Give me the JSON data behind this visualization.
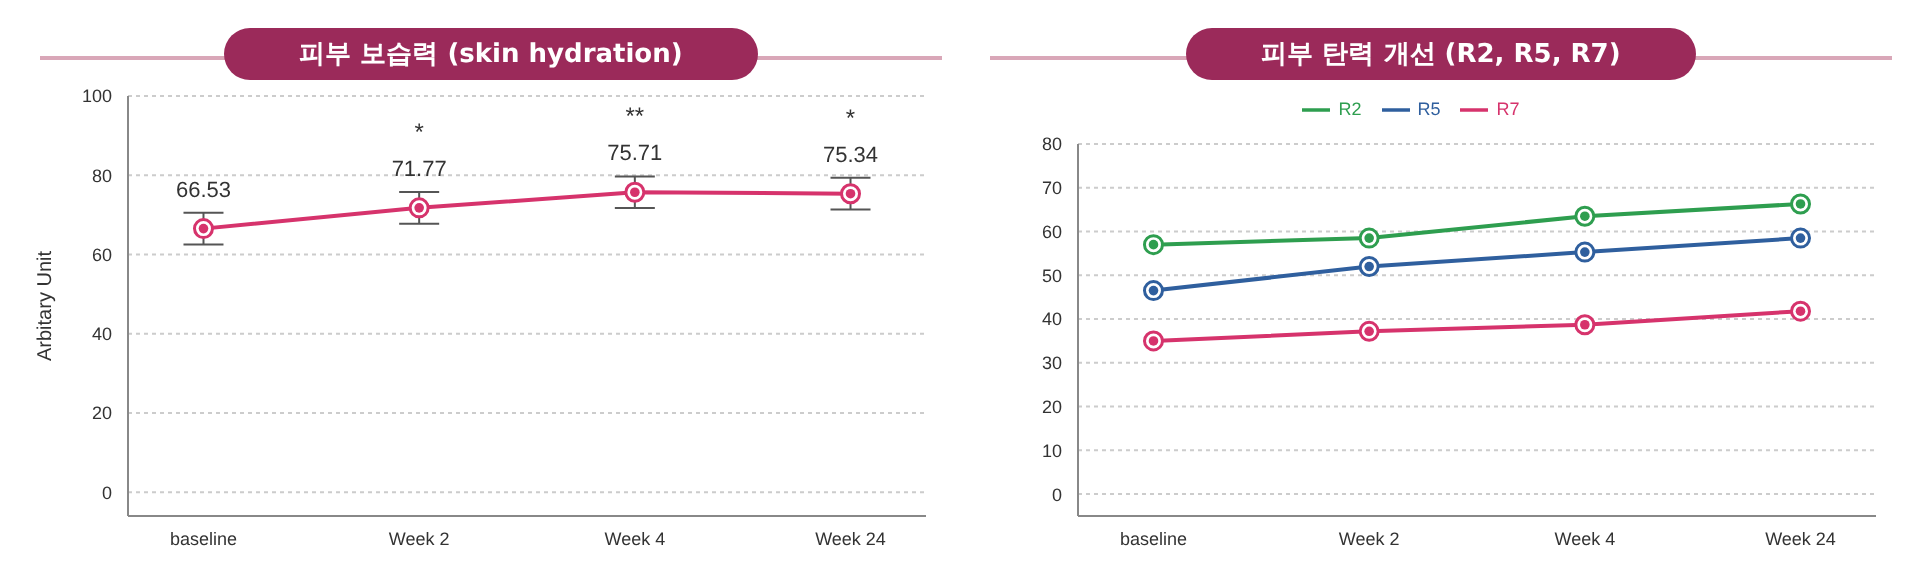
{
  "chart_data": [
    {
      "type": "line",
      "title": "피부 보습력 (skin hydration)",
      "ylabel": "Arbitary Unit",
      "categories": [
        "baseline",
        "Week 2",
        "Week 4",
        "Week 24"
      ],
      "series": [
        {
          "color": "#d6336c",
          "values": [
            66.53,
            71.77,
            75.71,
            75.34
          ],
          "errors": [
            4,
            4,
            4,
            4
          ]
        }
      ],
      "ylim": [
        -6,
        100
      ],
      "yticks": [
        0,
        20,
        40,
        60,
        80,
        100
      ],
      "grid": "y",
      "marker": "circle",
      "line_style": "solid",
      "data_labels": true,
      "annotations": [
        {
          "text": "*",
          "x": "Week 2",
          "y": 71.77
        },
        {
          "text": "**",
          "x": "Week 4",
          "y": 75.71
        },
        {
          "text": "*",
          "x": "Week 24",
          "y": 75.34
        }
      ]
    },
    {
      "type": "line",
      "title": "피부 탄력 개선 (R2, R5, R7)",
      "categories": [
        "baseline",
        "Week 2",
        "Week 4",
        "Week 24"
      ],
      "series": [
        {
          "name": "R2",
          "color": "#2e9e4f",
          "values": [
            57,
            58.5,
            63.5,
            66.3
          ]
        },
        {
          "name": "R5",
          "color": "#2f5f9e",
          "values": [
            46.5,
            52,
            55.3,
            58.5
          ]
        },
        {
          "name": "R7",
          "color": "#d6336c",
          "values": [
            35,
            37.2,
            38.7,
            41.8
          ]
        }
      ],
      "ylim": [
        -5,
        80
      ],
      "yticks": [
        0,
        10,
        20,
        30,
        40,
        50,
        60,
        70,
        80
      ],
      "grid": "y",
      "marker": "circle",
      "line_style": "solid",
      "legend": "top"
    }
  ]
}
